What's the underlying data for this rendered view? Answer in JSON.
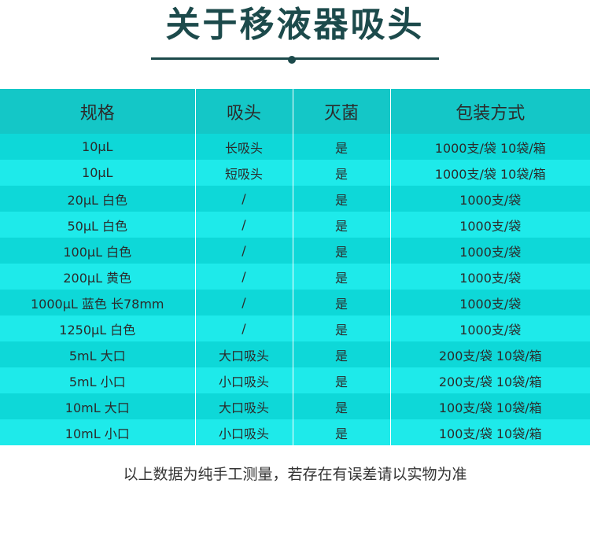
{
  "title": "关于移液器吸头",
  "table": {
    "headers": [
      "规格",
      "吸头",
      "灭菌",
      "包装方式"
    ],
    "rows": [
      [
        "10μL",
        "长吸头",
        "是",
        "1000支/袋  10袋/箱"
      ],
      [
        "10μL",
        "短吸头",
        "是",
        "1000支/袋  10袋/箱"
      ],
      [
        "20μL 白色",
        "/",
        "是",
        "1000支/袋"
      ],
      [
        "50μL 白色",
        "/",
        "是",
        "1000支/袋"
      ],
      [
        "100μL 白色",
        "/",
        "是",
        "1000支/袋"
      ],
      [
        "200μL 黄色",
        "/",
        "是",
        "1000支/袋"
      ],
      [
        "1000μL 蓝色 长78mm",
        "/",
        "是",
        "1000支/袋"
      ],
      [
        "1250μL 白色",
        "/",
        "是",
        "1000支/袋"
      ],
      [
        "5mL  大口",
        "大口吸头",
        "是",
        "200支/袋  10袋/箱"
      ],
      [
        "5mL  小口",
        "小口吸头",
        "是",
        "200支/袋  10袋/箱"
      ],
      [
        "10mL  大口",
        "大口吸头",
        "是",
        "100支/袋  10袋/箱"
      ],
      [
        "10mL  小口",
        "小口吸头",
        "是",
        "100支/袋  10袋/箱"
      ]
    ]
  },
  "note": "以上数据为纯手工测量，若存在有误差请以实物为准",
  "colors": {
    "title": "#1c4a4b",
    "header_bg": "#14c7c7",
    "row_even_bg": "#0ed8d8",
    "row_odd_bg": "#1eeaea"
  }
}
